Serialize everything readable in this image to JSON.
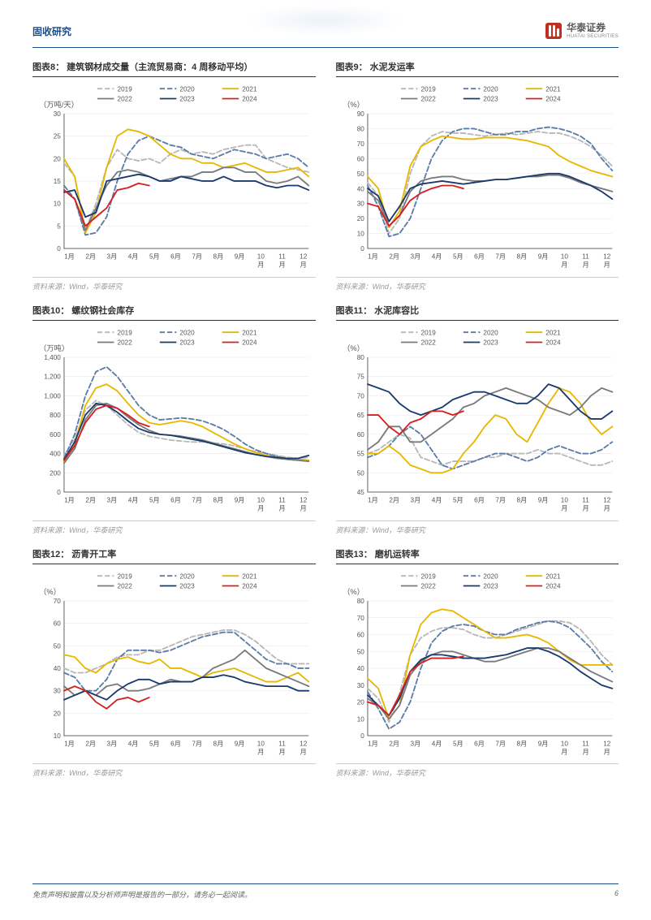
{
  "header": {
    "section": "固收研究",
    "company_cn": "华泰证券",
    "company_en": "HUATAI SECURITIES"
  },
  "footer": {
    "disclaimer": "免责声明和披露以及分析师声明是报告的一部分，请务必一起阅读。",
    "page_num": "6"
  },
  "legend": {
    "items": [
      {
        "label": "2019",
        "color": "#b8b8b8",
        "dash": "6,3"
      },
      {
        "label": "2020",
        "color": "#5b7ca8",
        "dash": "6,3"
      },
      {
        "label": "2021",
        "color": "#e8b800",
        "dash": "0"
      },
      {
        "label": "2022",
        "color": "#7a7a7a",
        "dash": "0"
      },
      {
        "label": "2023",
        "color": "#1a3a6e",
        "dash": "0"
      },
      {
        "label": "2024",
        "color": "#d62020",
        "dash": "0"
      }
    ]
  },
  "axis": {
    "months": [
      "1月",
      "2月",
      "3月",
      "4月",
      "5月",
      "6月",
      "7月",
      "8月",
      "9月",
      "10月",
      "11月",
      "12月"
    ],
    "colors": {
      "axis": "#666666",
      "grid": "#e5e5e5",
      "text": "#555555",
      "bg": "#ffffff"
    },
    "font": {
      "tick_size": 8,
      "label_size": 9
    }
  },
  "charts": [
    {
      "id": "c8",
      "title": "图表8： 建筑钢材成交量（主流贸易商：4 周移动平均）",
      "ylabel": "（万吨/天）",
      "ylim": [
        0,
        30
      ],
      "yticks": [
        0,
        5,
        10,
        15,
        20,
        25,
        30
      ],
      "series": {
        "s2019": [
          19,
          16,
          4,
          10,
          18,
          22,
          20,
          19.5,
          20,
          19,
          21,
          22,
          21,
          21.5,
          21,
          22,
          22.5,
          23,
          23,
          20,
          19,
          18,
          17.5,
          17
        ],
        "s2020": [
          14,
          11,
          3,
          3.5,
          7,
          15,
          21,
          24,
          25,
          24,
          23,
          22.5,
          21,
          20.5,
          20,
          21,
          22,
          21.5,
          21,
          20,
          20.5,
          21,
          20,
          18
        ],
        "s2021": [
          20,
          16,
          3.5,
          8,
          18,
          25,
          26.5,
          26,
          25,
          23,
          21,
          20,
          20,
          19,
          19,
          18,
          18.5,
          19,
          18,
          17,
          17,
          17.5,
          18,
          16
        ],
        "s2022": [
          13,
          11,
          4,
          9,
          14,
          17,
          17.5,
          17,
          16,
          15,
          15.5,
          16,
          16,
          17,
          17,
          18,
          18,
          17,
          17,
          15,
          14.5,
          15,
          16,
          14
        ],
        "s2023": [
          12.5,
          13,
          7,
          8,
          15,
          15.5,
          16,
          16.5,
          16,
          15,
          15,
          16,
          15.5,
          15,
          15,
          16,
          15,
          15,
          15,
          14,
          13.5,
          14,
          14,
          13
        ],
        "s2024": [
          13,
          11,
          5,
          7,
          9,
          13,
          13.5,
          14.5,
          14,
          null,
          null,
          null,
          null,
          null,
          null,
          null,
          null,
          null,
          null,
          null,
          null,
          null,
          null,
          null
        ]
      },
      "source": "资料来源：Wind，华泰研究"
    },
    {
      "id": "c9",
      "title": "图表9： 水泥发运率",
      "ylabel": "（%）",
      "ylim": [
        0,
        90
      ],
      "yticks": [
        0,
        10,
        20,
        30,
        40,
        50,
        60,
        70,
        80,
        90
      ],
      "series": {
        "s2019": [
          44,
          35,
          10,
          20,
          50,
          68,
          75,
          78,
          77,
          77,
          76,
          75,
          76,
          77,
          76,
          77,
          78,
          77,
          77,
          75,
          72,
          68,
          62,
          55
        ],
        "s2020": [
          42,
          28,
          8,
          10,
          20,
          40,
          60,
          72,
          78,
          80,
          80,
          78,
          76,
          76,
          78,
          78,
          80,
          81,
          80,
          78,
          75,
          70,
          60,
          52
        ],
        "s2021": [
          48,
          40,
          14,
          25,
          55,
          68,
          72,
          75,
          74,
          73,
          73,
          74,
          74,
          74,
          73,
          72,
          70,
          68,
          62,
          58,
          55,
          52,
          50,
          48
        ],
        "s2022": [
          38,
          32,
          15,
          22,
          38,
          45,
          47,
          48,
          48,
          46,
          45,
          45,
          46,
          46,
          47,
          48,
          48,
          49,
          49,
          47,
          44,
          42,
          40,
          38
        ],
        "s2023": [
          40,
          35,
          18,
          28,
          40,
          43,
          44,
          45,
          44,
          43,
          44,
          45,
          46,
          46,
          47,
          48,
          49,
          50,
          50,
          48,
          45,
          42,
          38,
          33
        ],
        "s2024": [
          30,
          28,
          15,
          22,
          32,
          37,
          40,
          42,
          42,
          40,
          null,
          null,
          null,
          null,
          null,
          null,
          null,
          null,
          null,
          null,
          null,
          null,
          null,
          null
        ]
      },
      "source": "资料来源：Wind，华泰研究"
    },
    {
      "id": "c10",
      "title": "图表10： 螺纹钢社会库存",
      "ylabel": "（万吨）",
      "ylim": [
        0,
        1400
      ],
      "yticks": [
        0,
        200,
        400,
        600,
        800,
        1000,
        1200,
        1400
      ],
      "series": {
        "s2019": [
          380,
          550,
          850,
          950,
          900,
          800,
          700,
          620,
          580,
          560,
          540,
          530,
          520,
          520,
          510,
          500,
          480,
          450,
          420,
          400,
          380,
          360,
          350,
          360
        ],
        "s2020": [
          350,
          600,
          1000,
          1250,
          1300,
          1200,
          1050,
          900,
          800,
          750,
          760,
          770,
          760,
          740,
          700,
          650,
          580,
          500,
          440,
          400,
          370,
          340,
          330,
          320
        ],
        "s2021": [
          320,
          500,
          900,
          1080,
          1120,
          1050,
          920,
          800,
          720,
          700,
          720,
          740,
          720,
          680,
          620,
          560,
          500,
          450,
          410,
          380,
          360,
          350,
          340,
          330
        ],
        "s2022": [
          300,
          450,
          750,
          900,
          920,
          870,
          780,
          700,
          640,
          600,
          590,
          580,
          560,
          540,
          510,
          480,
          450,
          420,
          390,
          370,
          350,
          340,
          330,
          320
        ],
        "s2023": [
          340,
          520,
          800,
          920,
          900,
          830,
          740,
          660,
          620,
          600,
          590,
          570,
          550,
          530,
          500,
          470,
          440,
          410,
          390,
          370,
          360,
          350,
          350,
          380
        ],
        "s2024": [
          330,
          480,
          720,
          860,
          900,
          870,
          800,
          720,
          680,
          null,
          null,
          null,
          null,
          null,
          null,
          null,
          null,
          null,
          null,
          null,
          null,
          null,
          null,
          null
        ]
      },
      "source": "资料来源：Wind，华泰研究"
    },
    {
      "id": "c11",
      "title": "图表11： 水泥库容比",
      "ylabel": "（%）",
      "ylim": [
        45,
        80
      ],
      "yticks": [
        45,
        50,
        55,
        60,
        65,
        70,
        75,
        80
      ],
      "series": {
        "s2019": [
          55,
          56,
          58,
          60,
          59,
          54,
          53,
          52,
          53,
          53,
          53,
          54,
          54,
          55,
          55,
          55,
          56,
          55,
          55,
          54,
          53,
          52,
          52,
          53
        ],
        "s2020": [
          54,
          55,
          57,
          60,
          62,
          60,
          56,
          52,
          51,
          52,
          53,
          54,
          55,
          55,
          54,
          53,
          54,
          56,
          57,
          56,
          55,
          55,
          56,
          58
        ],
        "s2021": [
          55,
          55,
          57,
          55,
          52,
          51,
          50,
          50,
          51,
          55,
          58,
          62,
          65,
          64,
          60,
          58,
          63,
          68,
          72,
          71,
          68,
          63,
          60,
          62
        ],
        "s2022": [
          56,
          58,
          62,
          62,
          58,
          58,
          60,
          62,
          64,
          67,
          68,
          70,
          71,
          72,
          71,
          70,
          69,
          67,
          66,
          65,
          67,
          70,
          72,
          71
        ],
        "s2023": [
          73,
          72,
          71,
          68,
          66,
          65,
          66,
          67,
          69,
          70,
          71,
          71,
          70,
          69,
          68,
          68,
          70,
          73,
          72,
          69,
          66,
          64,
          64,
          66
        ],
        "s2024": [
          65,
          65,
          62,
          60,
          63,
          64,
          66,
          66,
          65,
          66,
          null,
          null,
          null,
          null,
          null,
          null,
          null,
          null,
          null,
          null,
          null,
          null,
          null,
          null
        ]
      },
      "source": "资料来源：Wind，华泰研究"
    },
    {
      "id": "c12",
      "title": "图表12： 沥青开工率",
      "ylabel": "（%）",
      "ylim": [
        10,
        70
      ],
      "yticks": [
        10,
        20,
        30,
        40,
        50,
        60,
        70
      ],
      "series": {
        "s2019": [
          40,
          38,
          38,
          40,
          42,
          45,
          46,
          46,
          48,
          48,
          50,
          52,
          54,
          55,
          56,
          57,
          57,
          55,
          52,
          48,
          44,
          42,
          42,
          42
        ],
        "s2020": [
          38,
          36,
          30,
          30,
          35,
          44,
          48,
          48,
          48,
          47,
          48,
          50,
          52,
          54,
          55,
          56,
          56,
          52,
          48,
          44,
          42,
          42,
          40,
          40
        ],
        "s2021": [
          46,
          45,
          40,
          38,
          42,
          44,
          45,
          43,
          42,
          44,
          40,
          40,
          38,
          36,
          38,
          39,
          40,
          38,
          36,
          34,
          34,
          36,
          38,
          34
        ],
        "s2022": [
          32,
          28,
          30,
          28,
          32,
          33,
          30,
          30,
          31,
          33,
          35,
          34,
          34,
          36,
          40,
          42,
          44,
          48,
          44,
          40,
          38,
          36,
          34,
          32
        ],
        "s2023": [
          26,
          28,
          30,
          28,
          26,
          30,
          33,
          35,
          35,
          33,
          34,
          34,
          34,
          36,
          36,
          37,
          36,
          34,
          33,
          32,
          32,
          32,
          30,
          30
        ],
        "s2024": [
          30,
          32,
          30,
          25,
          22,
          26,
          27,
          25,
          27,
          null,
          null,
          null,
          null,
          null,
          null,
          null,
          null,
          null,
          null,
          null,
          null,
          null,
          null,
          null
        ]
      },
      "source": "资料来源：Wind，华泰研究"
    },
    {
      "id": "c13",
      "title": "图表13： 磨机运转率",
      "ylabel": "（%）",
      "ylim": [
        0,
        80
      ],
      "yticks": [
        0,
        10,
        20,
        30,
        40,
        50,
        60,
        70,
        80
      ],
      "series": {
        "s2019": [
          28,
          22,
          8,
          25,
          48,
          58,
          62,
          64,
          64,
          63,
          60,
          58,
          58,
          60,
          62,
          64,
          66,
          68,
          68,
          67,
          63,
          56,
          48,
          42
        ],
        "s2020": [
          26,
          16,
          4,
          8,
          20,
          40,
          55,
          62,
          65,
          66,
          65,
          62,
          60,
          60,
          63,
          65,
          67,
          68,
          67,
          64,
          58,
          52,
          44,
          38
        ],
        "s2021": [
          34,
          28,
          10,
          18,
          48,
          66,
          73,
          75,
          74,
          70,
          66,
          62,
          58,
          58,
          59,
          60,
          58,
          55,
          50,
          45,
          42,
          42,
          42,
          42
        ],
        "s2022": [
          22,
          18,
          10,
          18,
          36,
          44,
          48,
          50,
          50,
          48,
          46,
          44,
          44,
          46,
          48,
          50,
          52,
          52,
          50,
          46,
          42,
          38,
          35,
          32
        ],
        "s2023": [
          24,
          18,
          12,
          22,
          38,
          45,
          48,
          48,
          47,
          46,
          46,
          46,
          47,
          48,
          50,
          52,
          52,
          50,
          47,
          43,
          38,
          34,
          30,
          28
        ],
        "s2024": [
          20,
          18,
          12,
          24,
          38,
          43,
          46,
          46,
          46,
          47,
          null,
          null,
          null,
          null,
          null,
          null,
          null,
          null,
          null,
          null,
          null,
          null,
          null,
          null
        ]
      },
      "source": "资料来源：Wind，华泰研究"
    }
  ]
}
